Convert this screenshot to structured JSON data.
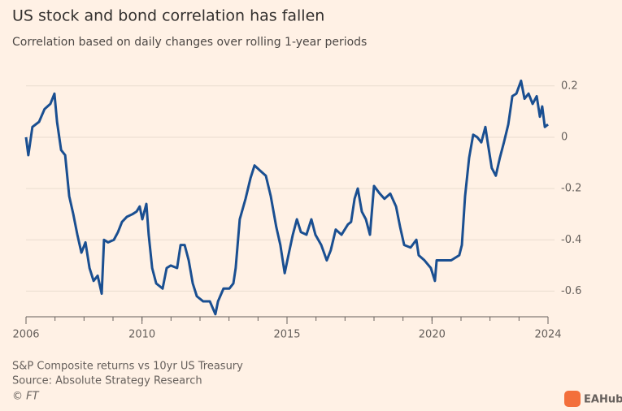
{
  "chart_data": {
    "type": "line",
    "title": "US stock and bond correlation has fallen",
    "subtitle": "Correlation based on daily changes over rolling 1-year periods",
    "note": "S&P Composite returns vs 10yr US Treasury",
    "source": "Source: Absolute Strategy Research",
    "credit": "© FT",
    "watermark": "EAHub",
    "color": "#1a4f91",
    "x": [
      2006.0,
      2006.08,
      2006.22,
      2006.45,
      2006.64,
      2006.84,
      2006.98,
      2007.07,
      2007.21,
      2007.35,
      2007.49,
      2007.63,
      2007.77,
      2007.91,
      2008.05,
      2008.19,
      2008.33,
      2008.47,
      2008.61,
      2008.69,
      2008.83,
      2009.03,
      2009.17,
      2009.31,
      2009.48,
      2009.67,
      2009.81,
      2009.92,
      2010.01,
      2010.15,
      2010.23,
      2010.35,
      2010.49,
      2010.71,
      2010.85,
      2010.99,
      2011.21,
      2011.33,
      2011.47,
      2011.61,
      2011.75,
      2011.89,
      2012.11,
      2012.34,
      2012.53,
      2012.62,
      2012.81,
      2013.01,
      2013.15,
      2013.23,
      2013.37,
      2013.57,
      2013.74,
      2013.88,
      2014.07,
      2014.27,
      2014.44,
      2014.63,
      2014.77,
      2014.92,
      2015.03,
      2015.2,
      2015.34,
      2015.48,
      2015.67,
      2015.84,
      2015.98,
      2016.18,
      2016.37,
      2016.51,
      2016.68,
      2016.88,
      2017.1,
      2017.21,
      2017.33,
      2017.44,
      2017.58,
      2017.72,
      2017.86,
      2018.0,
      2018.2,
      2018.36,
      2018.56,
      2018.76,
      2018.9,
      2019.04,
      2019.26,
      2019.46,
      2019.54,
      2019.74,
      2019.96,
      2020.1,
      2020.16,
      2020.38,
      2020.66,
      2020.94,
      2021.03,
      2021.14,
      2021.28,
      2021.42,
      2021.56,
      2021.7,
      2021.84,
      2021.92,
      2022.06,
      2022.2,
      2022.34,
      2022.48,
      2022.63,
      2022.77,
      2022.91,
      2023.07,
      2023.19,
      2023.33,
      2023.47,
      2023.61,
      2023.72,
      2023.8,
      2023.89,
      2024.0
    ],
    "values": [
      0.0,
      -0.07,
      0.04,
      0.06,
      0.11,
      0.13,
      0.17,
      0.06,
      -0.05,
      -0.07,
      -0.23,
      -0.3,
      -0.38,
      -0.45,
      -0.41,
      -0.51,
      -0.56,
      -0.54,
      -0.61,
      -0.4,
      -0.41,
      -0.4,
      -0.37,
      -0.33,
      -0.31,
      -0.3,
      -0.29,
      -0.27,
      -0.32,
      -0.26,
      -0.38,
      -0.51,
      -0.57,
      -0.59,
      -0.51,
      -0.5,
      -0.51,
      -0.42,
      -0.42,
      -0.48,
      -0.57,
      -0.62,
      -0.64,
      -0.64,
      -0.69,
      -0.64,
      -0.59,
      -0.59,
      -0.57,
      -0.51,
      -0.32,
      -0.24,
      -0.16,
      -0.11,
      -0.13,
      -0.15,
      -0.23,
      -0.35,
      -0.42,
      -0.53,
      -0.47,
      -0.38,
      -0.32,
      -0.37,
      -0.38,
      -0.32,
      -0.38,
      -0.42,
      -0.48,
      -0.44,
      -0.36,
      -0.38,
      -0.34,
      -0.33,
      -0.24,
      -0.2,
      -0.29,
      -0.32,
      -0.38,
      -0.19,
      -0.22,
      -0.24,
      -0.22,
      -0.27,
      -0.35,
      -0.42,
      -0.43,
      -0.4,
      -0.46,
      -0.48,
      -0.51,
      -0.56,
      -0.48,
      -0.48,
      -0.48,
      -0.46,
      -0.42,
      -0.23,
      -0.08,
      0.01,
      0.0,
      -0.02,
      0.04,
      -0.02,
      -0.12,
      -0.15,
      -0.08,
      -0.02,
      0.05,
      0.16,
      0.17,
      0.22,
      0.15,
      0.17,
      0.13,
      0.16,
      0.08,
      0.12,
      0.04,
      0.05
    ],
    "xlim": [
      2006,
      2024
    ],
    "xticks": [
      2006,
      2010,
      2015,
      2020,
      2024
    ],
    "xminorticks": [
      2006,
      2007,
      2008,
      2009,
      2010,
      2011,
      2012,
      2013,
      2014,
      2015,
      2016,
      2017,
      2018,
      2019,
      2020,
      2021,
      2022,
      2023,
      2024
    ],
    "ylim": [
      -0.7,
      0.25
    ],
    "yticks": [
      0.2,
      0,
      -0.2,
      -0.4,
      -0.6
    ],
    "grid": true
  }
}
